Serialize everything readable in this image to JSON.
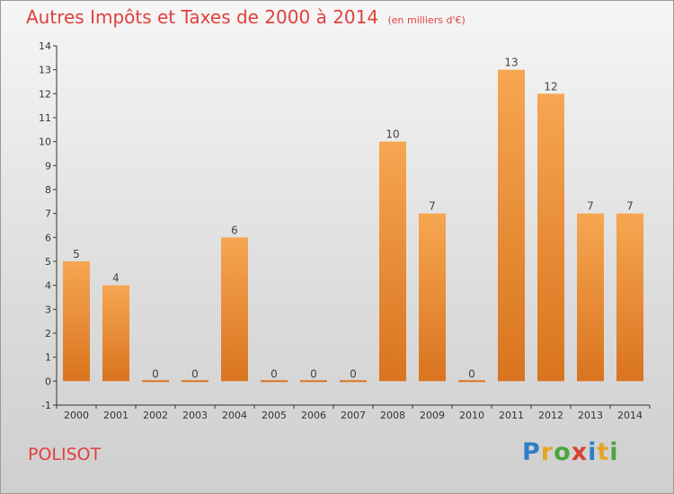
{
  "title": "Autres Impôts et Taxes de 2000 à 2014",
  "subtitle": "(en milliers d'€)",
  "commune": "POLISOT",
  "logo": {
    "text": "Proxiti",
    "letters": [
      {
        "ch": "P",
        "color": "#2f7fc6"
      },
      {
        "ch": "r",
        "color": "#e7a423"
      },
      {
        "ch": "o",
        "color": "#4aa53a"
      },
      {
        "ch": "x",
        "color": "#d8402f"
      },
      {
        "ch": "i",
        "color": "#2f7fc6"
      },
      {
        "ch": "t",
        "color": "#e7a423"
      },
      {
        "ch": "i",
        "color": "#4aa53a"
      }
    ]
  },
  "colors": {
    "title": "#e0403d",
    "bar_light": "#f6a651",
    "bar_dark": "#d9741f"
  },
  "chart_data": {
    "type": "bar",
    "categories": [
      "2000",
      "2001",
      "2002",
      "2003",
      "2004",
      "2005",
      "2006",
      "2007",
      "2008",
      "2009",
      "2010",
      "2011",
      "2012",
      "2013",
      "2014"
    ],
    "values": [
      5,
      4,
      0,
      0,
      6,
      0,
      0,
      0,
      10,
      7,
      0,
      13,
      12,
      7,
      7
    ],
    "ylim": [
      -1,
      14
    ],
    "yticks": [
      "-1",
      "0",
      "1",
      "2",
      "3",
      "4",
      "5",
      "6",
      "7",
      "8",
      "9",
      "10",
      "11",
      "12",
      "13",
      "14"
    ],
    "grid": false,
    "title": "Autres Impôts et Taxes de 2000 à 2014",
    "xlabel": "",
    "ylabel": ""
  }
}
